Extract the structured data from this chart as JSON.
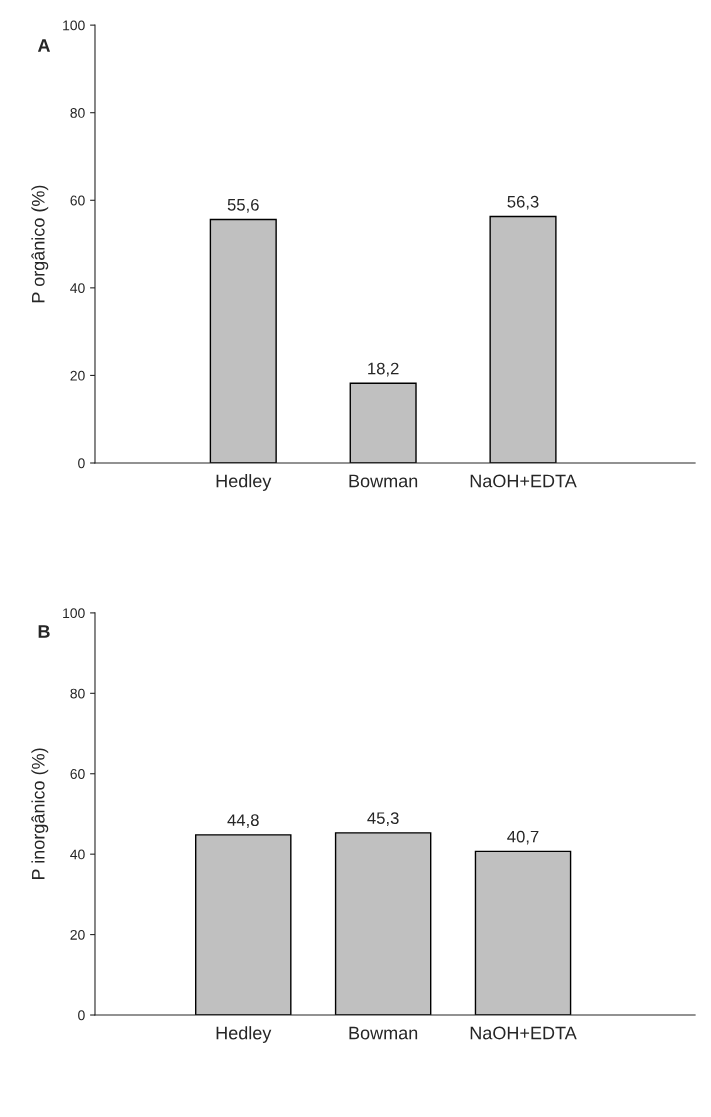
{
  "chart_data": [
    {
      "type": "bar",
      "ylabel": "P orgânico (%)",
      "annotations": [
        "A"
      ],
      "categories": [
        "Hedley",
        "Bowman",
        "NaOH+EDTA"
      ],
      "values": [
        55.6,
        18.2,
        56.3
      ],
      "value_labels": [
        "55,6",
        "18,2",
        "56,3"
      ],
      "color": "#c0c0c0",
      "ylim": [
        0,
        100
      ],
      "yticks": [
        0,
        20,
        40,
        60,
        80,
        100
      ],
      "grid": false,
      "legend": false
    },
    {
      "type": "bar",
      "ylabel": "P inorgânico (%)",
      "annotations": [
        "B"
      ],
      "categories": [
        "Hedley",
        "Bowman",
        "NaOH+EDTA"
      ],
      "values": [
        44.8,
        45.3,
        40.7
      ],
      "value_labels": [
        "44,8",
        "45,3",
        "40,7"
      ],
      "color": "#c0c0c0",
      "ylim": [
        0,
        100
      ],
      "yticks": [
        0,
        20,
        40,
        60,
        80,
        100
      ],
      "grid": false,
      "legend": false
    }
  ]
}
